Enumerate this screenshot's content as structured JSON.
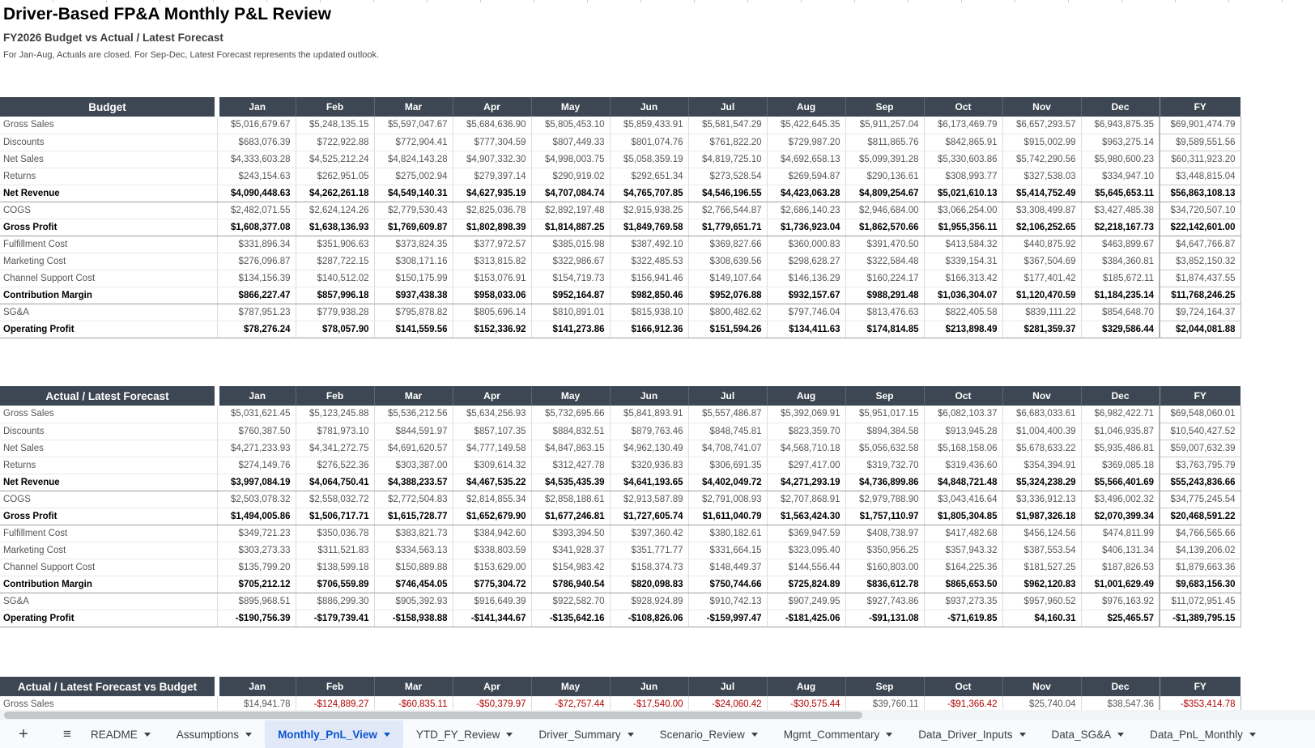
{
  "page": {
    "title": "Driver-Based FP&A Monthly P&L Review",
    "subtitle": "FY2026 Budget vs Actual / Latest Forecast",
    "note": "For Jan-Aug, Actuals are closed. For Sep-Dec, Latest Forecast represents the updated outlook."
  },
  "colors": {
    "header_bg": "#3d4753",
    "negative_red": "#b10000",
    "active_tab_bg": "#e1e8f8",
    "active_tab_fg": "#0b57d0"
  },
  "columns": [
    "Jan",
    "Feb",
    "Mar",
    "Apr",
    "May",
    "Jun",
    "Jul",
    "Aug",
    "Sep",
    "Oct",
    "Nov",
    "Dec",
    "FY"
  ],
  "tables": [
    {
      "name": "Budget",
      "clipped": false,
      "rows": [
        {
          "label": "Gross Sales",
          "bold": false,
          "values": [
            "$5,016,679.67",
            "$5,248,135.15",
            "$5,597,047.67",
            "$5,684,636.90",
            "$5,805,453.10",
            "$5,859,433.91",
            "$5,581,547.29",
            "$5,422,645.35",
            "$5,911,257.04",
            "$6,173,469.79",
            "$6,657,293.57",
            "$6,943,875.35",
            "$69,901,474.79"
          ]
        },
        {
          "label": "Discounts",
          "bold": false,
          "values": [
            "$683,076.39",
            "$722,922.88",
            "$772,904.41",
            "$777,304.59",
            "$807,449.33",
            "$801,074.76",
            "$761,822.20",
            "$729,987.20",
            "$811,865.76",
            "$842,865.91",
            "$915,002.99",
            "$963,275.14",
            "$9,589,551.56"
          ]
        },
        {
          "label": "Net Sales",
          "bold": false,
          "values": [
            "$4,333,603.28",
            "$4,525,212.24",
            "$4,824,143.28",
            "$4,907,332.30",
            "$4,998,003.75",
            "$5,058,359.19",
            "$4,819,725.10",
            "$4,692,658.13",
            "$5,099,391.28",
            "$5,330,603.86",
            "$5,742,290.56",
            "$5,980,600.23",
            "$60,311,923.20"
          ]
        },
        {
          "label": "Returns",
          "bold": false,
          "values": [
            "$243,154.63",
            "$262,951.05",
            "$275,002.94",
            "$279,397.14",
            "$290,919.02",
            "$292,651.34",
            "$273,528.54",
            "$269,594.87",
            "$290,136.61",
            "$308,993.77",
            "$327,538.03",
            "$334,947.10",
            "$3,448,815.04"
          ]
        },
        {
          "label": "Net Revenue",
          "bold": true,
          "values": [
            "$4,090,448.63",
            "$4,262,261.18",
            "$4,549,140.31",
            "$4,627,935.19",
            "$4,707,084.74",
            "$4,765,707.85",
            "$4,546,196.55",
            "$4,423,063.28",
            "$4,809,254.67",
            "$5,021,610.13",
            "$5,414,752.49",
            "$5,645,653.11",
            "$56,863,108.13"
          ]
        },
        {
          "label": "COGS",
          "bold": false,
          "values": [
            "$2,482,071.55",
            "$2,624,124.26",
            "$2,779,530.43",
            "$2,825,036.78",
            "$2,892,197.48",
            "$2,915,938.25",
            "$2,766,544.87",
            "$2,686,140.23",
            "$2,946,684.00",
            "$3,066,254.00",
            "$3,308,499.87",
            "$3,427,485.38",
            "$34,720,507.10"
          ]
        },
        {
          "label": "Gross Profit",
          "bold": true,
          "values": [
            "$1,608,377.08",
            "$1,638,136.93",
            "$1,769,609.87",
            "$1,802,898.39",
            "$1,814,887.25",
            "$1,849,769.58",
            "$1,779,651.71",
            "$1,736,923.04",
            "$1,862,570.66",
            "$1,955,356.11",
            "$2,106,252.65",
            "$2,218,167.73",
            "$22,142,601.00"
          ]
        },
        {
          "label": "Fulfillment Cost",
          "bold": false,
          "values": [
            "$331,896.34",
            "$351,906.63",
            "$373,824.35",
            "$377,972.57",
            "$385,015.98",
            "$387,492.10",
            "$369,827.66",
            "$360,000.83",
            "$391,470.50",
            "$413,584.32",
            "$440,875.92",
            "$463,899.67",
            "$4,647,766.87"
          ]
        },
        {
          "label": "Marketing Cost",
          "bold": false,
          "values": [
            "$276,096.87",
            "$287,722.15",
            "$308,171.16",
            "$313,815.82",
            "$322,986.67",
            "$322,485.53",
            "$308,639.56",
            "$298,628.27",
            "$322,584.48",
            "$339,154.31",
            "$367,504.69",
            "$384,360.81",
            "$3,852,150.32"
          ]
        },
        {
          "label": "Channel Support Cost",
          "bold": false,
          "values": [
            "$134,156.39",
            "$140,512.02",
            "$150,175.99",
            "$153,076.91",
            "$154,719.73",
            "$156,941.46",
            "$149,107.64",
            "$146,136.29",
            "$160,224.17",
            "$166,313.42",
            "$177,401.42",
            "$185,672.11",
            "$1,874,437.55"
          ]
        },
        {
          "label": "Contribution Margin",
          "bold": true,
          "values": [
            "$866,227.47",
            "$857,996.18",
            "$937,438.38",
            "$958,033.06",
            "$952,164.87",
            "$982,850.46",
            "$952,076.88",
            "$932,157.67",
            "$988,291.48",
            "$1,036,304.07",
            "$1,120,470.59",
            "$1,184,235.14",
            "$11,768,246.25"
          ]
        },
        {
          "label": "SG&A",
          "bold": false,
          "values": [
            "$787,951.23",
            "$779,938.28",
            "$795,878.82",
            "$805,696.14",
            "$810,891.01",
            "$815,938.10",
            "$800,482.62",
            "$797,746.04",
            "$813,476.63",
            "$822,405.58",
            "$839,111.22",
            "$854,648.70",
            "$9,724,164.37"
          ]
        },
        {
          "label": "Operating Profit",
          "bold": true,
          "values": [
            "$78,276.24",
            "$78,057.90",
            "$141,559.56",
            "$152,336.92",
            "$141,273.86",
            "$166,912.36",
            "$151,594.26",
            "$134,411.63",
            "$174,814.85",
            "$213,898.49",
            "$281,359.37",
            "$329,586.44",
            "$2,044,081.88"
          ]
        }
      ]
    },
    {
      "name": "Actual / Latest Forecast",
      "clipped": false,
      "rows": [
        {
          "label": "Gross Sales",
          "bold": false,
          "values": [
            "$5,031,621.45",
            "$5,123,245.88",
            "$5,536,212.56",
            "$5,634,256.93",
            "$5,732,695.66",
            "$5,841,893.91",
            "$5,557,486.87",
            "$5,392,069.91",
            "$5,951,017.15",
            "$6,082,103.37",
            "$6,683,033.61",
            "$6,982,422.71",
            "$69,548,060.01"
          ]
        },
        {
          "label": "Discounts",
          "bold": false,
          "values": [
            "$760,387.50",
            "$781,973.10",
            "$844,591.97",
            "$857,107.35",
            "$884,832.51",
            "$879,763.46",
            "$848,745.81",
            "$823,359.70",
            "$894,384.58",
            "$913,945.28",
            "$1,004,400.39",
            "$1,046,935.87",
            "$10,540,427.52"
          ]
        },
        {
          "label": "Net Sales",
          "bold": false,
          "values": [
            "$4,271,233.93",
            "$4,341,272.75",
            "$4,691,620.57",
            "$4,777,149.58",
            "$4,847,863.15",
            "$4,962,130.49",
            "$4,708,741.07",
            "$4,568,710.18",
            "$5,056,632.58",
            "$5,168,158.06",
            "$5,678,633.22",
            "$5,935,486.81",
            "$59,007,632.39"
          ]
        },
        {
          "label": "Returns",
          "bold": false,
          "values": [
            "$274,149.76",
            "$276,522.36",
            "$303,387.00",
            "$309,614.32",
            "$312,427.78",
            "$320,936.83",
            "$306,691.35",
            "$297,417.00",
            "$319,732.70",
            "$319,436.60",
            "$354,394.91",
            "$369,085.18",
            "$3,763,795.79"
          ]
        },
        {
          "label": "Net Revenue",
          "bold": true,
          "values": [
            "$3,997,084.19",
            "$4,064,750.41",
            "$4,388,233.57",
            "$4,467,535.22",
            "$4,535,435.39",
            "$4,641,193.65",
            "$4,402,049.72",
            "$4,271,293.19",
            "$4,736,899.86",
            "$4,848,721.48",
            "$5,324,238.29",
            "$5,566,401.69",
            "$55,243,836.66"
          ]
        },
        {
          "label": "COGS",
          "bold": false,
          "values": [
            "$2,503,078.32",
            "$2,558,032.72",
            "$2,772,504.83",
            "$2,814,855.34",
            "$2,858,188.61",
            "$2,913,587.89",
            "$2,791,008.93",
            "$2,707,868.91",
            "$2,979,788.90",
            "$3,043,416.64",
            "$3,336,912.13",
            "$3,496,002.32",
            "$34,775,245.54"
          ]
        },
        {
          "label": "Gross Profit",
          "bold": true,
          "values": [
            "$1,494,005.86",
            "$1,506,717.71",
            "$1,615,728.77",
            "$1,652,679.90",
            "$1,677,246.81",
            "$1,727,605.74",
            "$1,611,040.79",
            "$1,563,424.30",
            "$1,757,110.97",
            "$1,805,304.85",
            "$1,987,326.18",
            "$2,070,399.34",
            "$20,468,591.22"
          ]
        },
        {
          "label": "Fulfillment Cost",
          "bold": false,
          "values": [
            "$349,721.23",
            "$350,036.78",
            "$383,821.73",
            "$384,942.60",
            "$393,394.50",
            "$397,360.42",
            "$380,182.61",
            "$369,947.59",
            "$408,738.97",
            "$417,482.68",
            "$456,124.56",
            "$474,811.99",
            "$4,766,565.66"
          ]
        },
        {
          "label": "Marketing Cost",
          "bold": false,
          "values": [
            "$303,273.33",
            "$311,521.83",
            "$334,563.13",
            "$338,803.59",
            "$341,928.37",
            "$351,771.77",
            "$331,664.15",
            "$323,095.40",
            "$350,956.25",
            "$357,943.32",
            "$387,553.54",
            "$406,131.34",
            "$4,139,206.02"
          ]
        },
        {
          "label": "Channel Support Cost",
          "bold": false,
          "values": [
            "$135,799.20",
            "$138,599.18",
            "$150,889.88",
            "$153,629.00",
            "$154,983.42",
            "$158,374.73",
            "$148,449.37",
            "$144,556.44",
            "$160,803.00",
            "$164,225.36",
            "$181,527.25",
            "$187,826.53",
            "$1,879,663.36"
          ]
        },
        {
          "label": "Contribution Margin",
          "bold": true,
          "values": [
            "$705,212.12",
            "$706,559.89",
            "$746,454.05",
            "$775,304.72",
            "$786,940.54",
            "$820,098.83",
            "$750,744.66",
            "$725,824.89",
            "$836,612.78",
            "$865,653.50",
            "$962,120.83",
            "$1,001,629.49",
            "$9,683,156.30"
          ]
        },
        {
          "label": "SG&A",
          "bold": false,
          "values": [
            "$895,968.51",
            "$886,299.30",
            "$905,392.93",
            "$916,649.39",
            "$922,582.70",
            "$928,924.89",
            "$910,742.13",
            "$907,249.95",
            "$927,743.86",
            "$937,273.35",
            "$957,960.52",
            "$976,163.92",
            "$11,072,951.45"
          ]
        },
        {
          "label": "Operating Profit",
          "bold": true,
          "values": [
            "-$190,756.39",
            "-$179,739.41",
            "-$158,938.88",
            "-$141,344.67",
            "-$135,642.16",
            "-$108,826.06",
            "-$159,997.47",
            "-$181,425.06",
            "-$91,131.08",
            "-$71,619.85",
            "$4,160.31",
            "$25,465.57",
            "-$1,389,795.15"
          ]
        }
      ]
    },
    {
      "name": "Actual / Latest Forecast vs Budget",
      "clipped": true,
      "rows": [
        {
          "label": "Gross Sales",
          "bold": false,
          "values": [
            "$14,941.78",
            "-$124,889.27",
            "-$60,835.11",
            "-$50,379.97",
            "-$72,757.44",
            "-$17,540.00",
            "-$24,060.42",
            "-$30,575.44",
            "$39,760.11",
            "-$91,366.42",
            "$25,740.04",
            "$38,547.36",
            "-$353,414.78"
          ]
        }
      ]
    }
  ],
  "tabbar": {
    "add_label": "+",
    "all_sheets_label": "≡",
    "tabs": [
      {
        "label": "README",
        "active": false
      },
      {
        "label": "Assumptions",
        "active": false
      },
      {
        "label": "Monthly_PnL_View",
        "active": true
      },
      {
        "label": "YTD_FY_Review",
        "active": false
      },
      {
        "label": "Driver_Summary",
        "active": false
      },
      {
        "label": "Scenario_Review",
        "active": false
      },
      {
        "label": "Mgmt_Commentary",
        "active": false
      },
      {
        "label": "Data_Driver_Inputs",
        "active": false
      },
      {
        "label": "Data_SG&A",
        "active": false
      },
      {
        "label": "Data_PnL_Monthly",
        "active": false
      }
    ]
  }
}
